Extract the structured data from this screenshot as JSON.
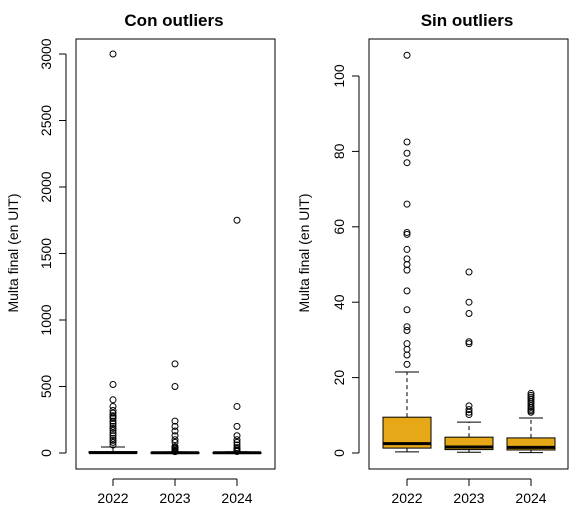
{
  "chart_data": [
    {
      "type": "boxplot",
      "title": "Con outliers",
      "ylabel": "Multa final (en UIT)",
      "xlabel": "",
      "ylim": [
        0,
        3100
      ],
      "y_ticks": [
        "0",
        "500",
        "1000",
        "1500",
        "2000",
        "2500",
        "3000"
      ],
      "y_tick_values": [
        0,
        500,
        1000,
        1500,
        2000,
        2500,
        3000
      ],
      "categories": [
        "2022",
        "2023",
        "2024"
      ],
      "box_fill": "#ffffff",
      "boxes": [
        {
          "category": "2022",
          "lower_whisker": 0.3,
          "q1": 1.5,
          "median": 2.8,
          "q3": 9.5,
          "upper_whisker": 45,
          "outliers": [
            60,
            80,
            95,
            110,
            130,
            150,
            170,
            185,
            200,
            220,
            240,
            260,
            270,
            280,
            300,
            320,
            350,
            400,
            515,
            3000
          ]
        },
        {
          "category": "2023",
          "lower_whisker": 0.2,
          "q1": 0.9,
          "median": 1.6,
          "q3": 4.0,
          "upper_whisker": 8,
          "outliers": [
            10,
            12,
            15,
            20,
            29,
            37,
            40,
            48,
            80,
            100,
            130,
            165,
            200,
            240,
            500,
            670
          ]
        },
        {
          "category": "2024",
          "lower_whisker": 0.1,
          "q1": 0.8,
          "median": 1.5,
          "q3": 3.9,
          "upper_whisker": 9,
          "outliers": [
            11,
            15,
            20,
            30,
            40,
            60,
            80,
            100,
            130,
            200,
            350,
            1750
          ]
        }
      ]
    },
    {
      "type": "boxplot",
      "title": "Sin outliers",
      "ylabel": "Multa final (en UIT)",
      "xlabel": "",
      "ylim": [
        0,
        108
      ],
      "y_ticks": [
        "0",
        "20",
        "40",
        "60",
        "80",
        "100"
      ],
      "y_tick_values": [
        0,
        20,
        40,
        60,
        80,
        100
      ],
      "categories": [
        "2022",
        "2023",
        "2024"
      ],
      "box_fill": "#e6a817",
      "boxes": [
        {
          "category": "2022",
          "lower_whisker": 0.3,
          "q1": 1.3,
          "median": 2.5,
          "q3": 9.5,
          "upper_whisker": 21.5,
          "outliers": [
            23.5,
            26,
            27.5,
            29,
            32.5,
            33.5,
            38,
            43,
            48.5,
            50,
            51.5,
            54,
            58,
            58.5,
            66,
            77,
            79.5,
            82.5,
            105.5
          ]
        },
        {
          "category": "2023",
          "lower_whisker": 0.2,
          "q1": 0.9,
          "median": 1.6,
          "q3": 4.2,
          "upper_whisker": 8.2,
          "outliers": [
            10.2,
            10.8,
            11.5,
            12.5,
            29,
            29.5,
            37,
            40,
            48
          ]
        },
        {
          "category": "2024",
          "lower_whisker": 0.1,
          "q1": 0.8,
          "median": 1.5,
          "q3": 4.0,
          "upper_whisker": 9.3,
          "outliers": [
            10.8,
            11.2,
            11.6,
            12.1,
            12.6,
            13.2,
            13.7,
            14.3,
            14.8,
            15.3,
            15.8
          ]
        }
      ]
    }
  ]
}
